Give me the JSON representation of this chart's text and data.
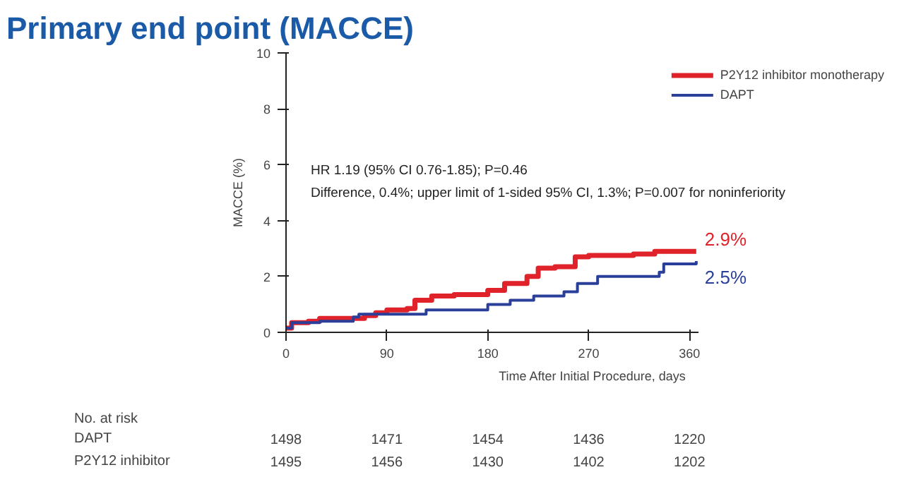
{
  "chart_data": {
    "type": "step",
    "title": "Primary end point (MACCE)",
    "xlabel": "Time After Initial Procedure, days",
    "ylabel": "MACCE (%)",
    "xlim": [
      0,
      368
    ],
    "xticks": [
      0,
      90,
      180,
      270,
      360
    ],
    "ylim": [
      0,
      10
    ],
    "yticks": [
      0,
      2,
      4,
      6,
      8,
      10
    ],
    "grid": false,
    "legend": "top right",
    "series": [
      {
        "name": "P2Y12 inhibitor monotherapy",
        "color": "#e0222a",
        "x": [
          0,
          5,
          20,
          30,
          60,
          70,
          80,
          90,
          108,
          115,
          130,
          150,
          180,
          195,
          215,
          225,
          240,
          258,
          270,
          310,
          329,
          366
        ],
        "values": [
          0.15,
          0.35,
          0.4,
          0.5,
          0.5,
          0.6,
          0.7,
          0.8,
          0.85,
          1.15,
          1.3,
          1.35,
          1.5,
          1.75,
          2.0,
          2.3,
          2.35,
          2.7,
          2.75,
          2.8,
          2.9,
          2.9
        ]
      },
      {
        "name": "DAPT",
        "color": "#2a3f9a",
        "x": [
          0,
          5,
          30,
          60,
          65,
          120,
          125,
          180,
          200,
          221,
          248,
          260,
          278,
          333,
          337,
          366
        ],
        "values": [
          0.15,
          0.35,
          0.4,
          0.55,
          0.65,
          0.65,
          0.8,
          1.0,
          1.15,
          1.3,
          1.45,
          1.75,
          2.0,
          2.15,
          2.45,
          2.55
        ]
      }
    ],
    "annotations": [
      "HR 1.19 (95% CI 0.76-1.85); P=0.46",
      "Difference, 0.4%; upper limit of 1-sided 95% CI, 1.3%; P=0.007 for noninferiority",
      {
        "text": "2.9%",
        "x": 366,
        "y": 2.9
      },
      {
        "text": "2.5%",
        "x": 366,
        "y": 2.5
      },
      "No. at risk",
      "DAPT",
      "1498",
      "1471",
      "1454",
      "1436",
      "1220",
      "P2Y12 inhibitor",
      "1495",
      "1456",
      "1430",
      "1402",
      "1202"
    ]
  }
}
